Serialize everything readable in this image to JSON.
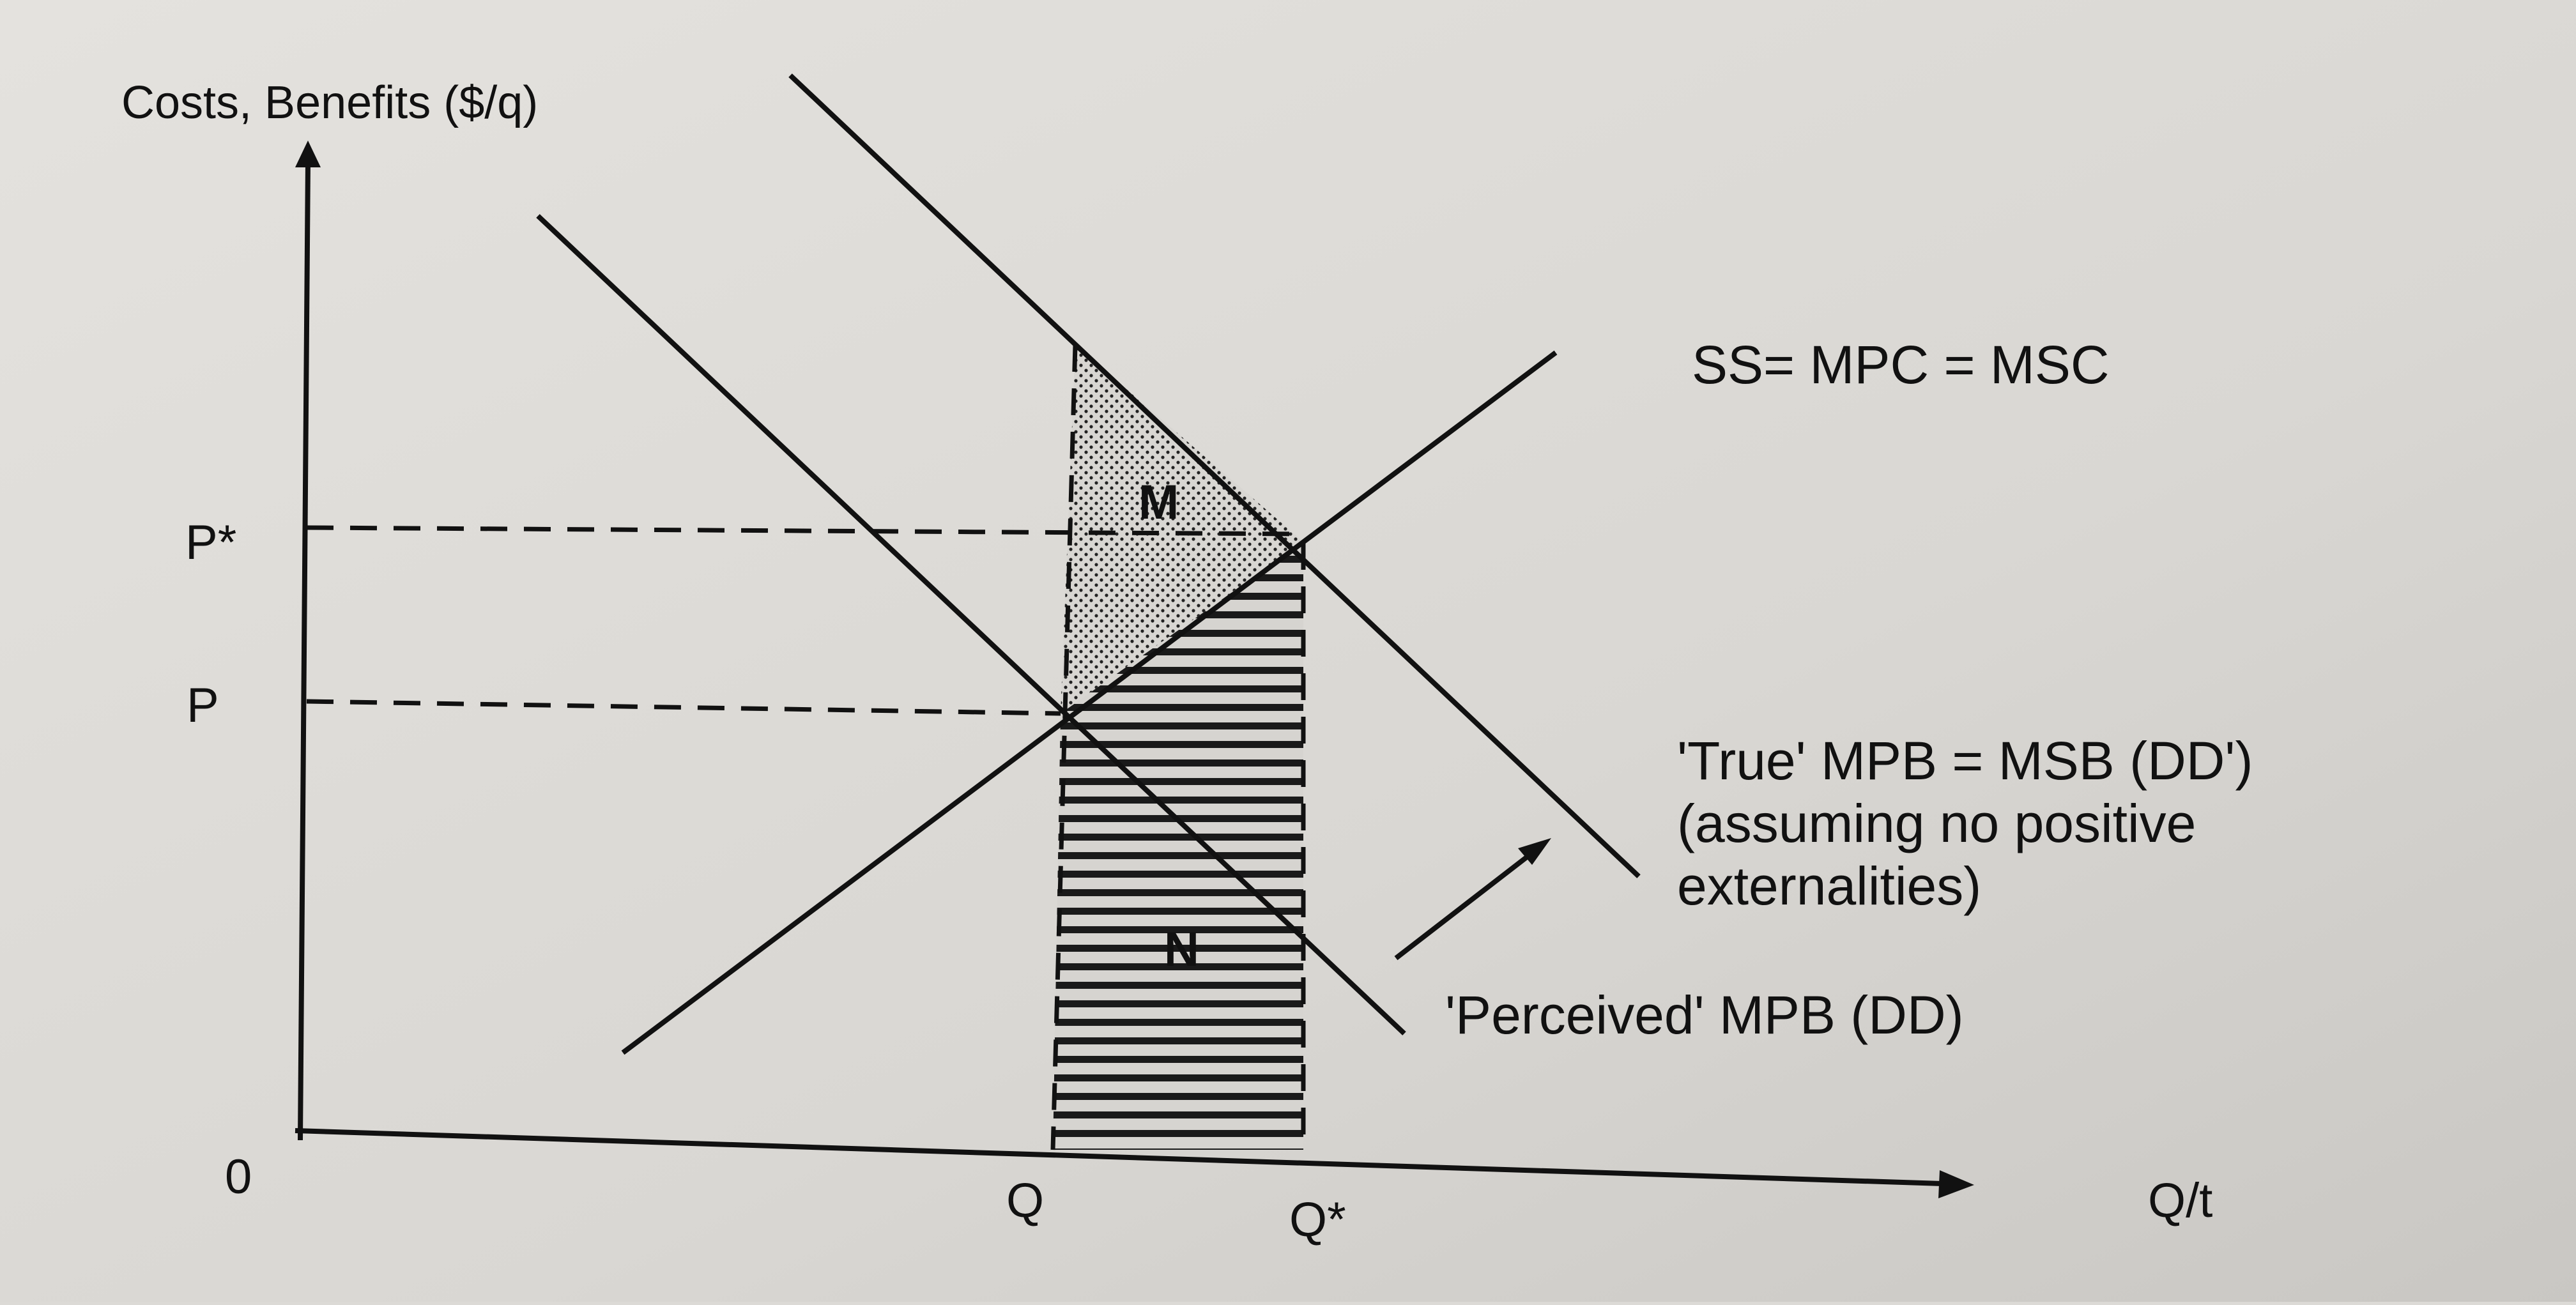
{
  "axes": {
    "y_label": "Costs, Benefits ($/q)",
    "x_label": "Q/t",
    "origin": "0"
  },
  "ticks": {
    "y": [
      "P*",
      "P"
    ],
    "x": [
      "Q",
      "Q*"
    ]
  },
  "curves": {
    "supply": "SS=  MPC = MSC",
    "true_demand": [
      "'True' MPB = MSB (DD')",
      "(assuming no positive",
      "externalities)"
    ],
    "perceived_demand": "'Perceived' MPB (DD)"
  },
  "regions": {
    "dotted": "M",
    "striped": "N"
  },
  "colors": {
    "ink": "#111111",
    "paper": "#dcdad6"
  }
}
